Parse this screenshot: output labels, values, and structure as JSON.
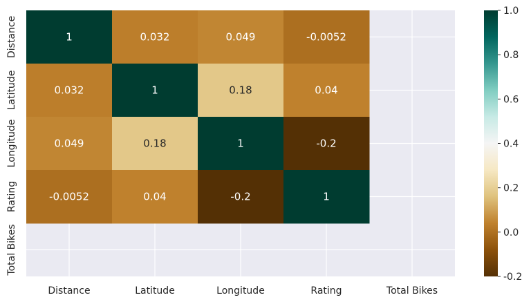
{
  "chart_data": {
    "type": "heatmap",
    "title": "",
    "xlabel": "",
    "ylabel": "",
    "x_categories": [
      "Distance",
      "Latitude",
      "Longitude",
      "Rating",
      "Total Bikes"
    ],
    "y_categories": [
      "Distance",
      "Latitude",
      "Longitude",
      "Rating",
      "Total Bikes"
    ],
    "values": [
      [
        1,
        0.032,
        0.049,
        -0.0052,
        null
      ],
      [
        0.032,
        1,
        0.18,
        0.04,
        null
      ],
      [
        0.049,
        0.18,
        1,
        -0.2,
        null
      ],
      [
        -0.0052,
        0.04,
        -0.2,
        1,
        null
      ],
      [
        null,
        null,
        null,
        null,
        null
      ]
    ],
    "annotations": [
      [
        "1",
        "0.032",
        "0.049",
        "-0.0052",
        ""
      ],
      [
        "0.032",
        "1",
        "0.18",
        "0.04",
        ""
      ],
      [
        "0.049",
        "0.18",
        "1",
        "-0.2",
        ""
      ],
      [
        "-0.0052",
        "0.04",
        "-0.2",
        "1",
        ""
      ],
      [
        "",
        "",
        "",
        "",
        ""
      ]
    ],
    "colormap": "BrBG",
    "vmin": -0.2,
    "vmax": 1.0,
    "colorbar_ticks": [
      "-0.2",
      "0.0",
      "0.2",
      "0.4",
      "0.6",
      "0.8",
      "1.0"
    ],
    "colorbar_tick_values": [
      -0.2,
      0.0,
      0.2,
      0.4,
      0.6,
      0.8,
      1.0
    ],
    "background_color": "#eaeaf2",
    "grid": true
  }
}
